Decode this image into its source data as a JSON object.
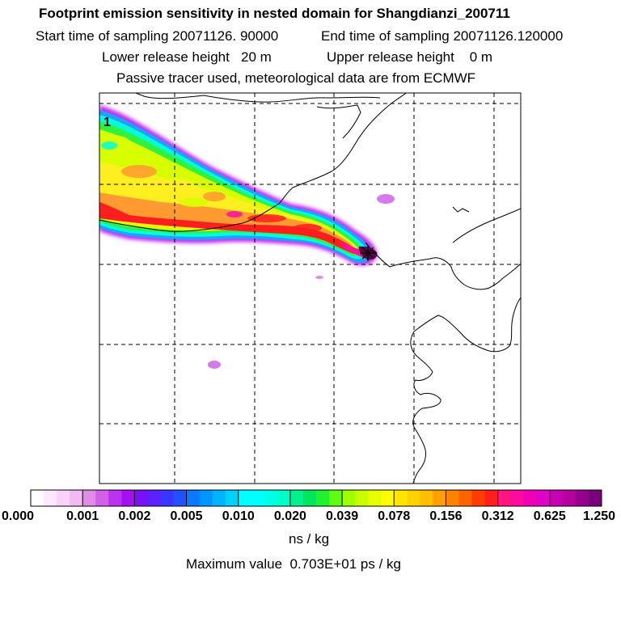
{
  "header": {
    "title": "Footprint emission sensitivity in nested domain for Shangdianzi_200711",
    "start_label": "Start time of sampling 20071126. 90000",
    "end_label": "End time of sampling 20071126.120000",
    "lower_label": "Lower release height   20 m",
    "upper_label": "Upper release height    0 m",
    "note": "Passive tracer used, meteorological data are from ECMWF"
  },
  "map": {
    "panel_number": "1",
    "max_value_note": "Maximum value  0.703E+01 ps / kg"
  },
  "colorbar": {
    "unit": "ns / kg",
    "labels": [
      "0.000",
      "0.001",
      "0.002",
      "0.005",
      "0.010",
      "0.020",
      "0.039",
      "0.078",
      "0.156",
      "0.312",
      "0.625",
      "1.250"
    ],
    "segments": [
      [
        "#ffffff",
        "#fde8fd",
        "#f9d2f9",
        "#f2baf2"
      ],
      [
        "#e28ce8",
        "#d060e6",
        "#bb33ee",
        "#a510f0"
      ],
      [
        "#7a10f8",
        "#5a20ff",
        "#3a35ff",
        "#2050ff"
      ],
      [
        "#0a78ff",
        "#0096ff",
        "#00b4ff",
        "#00d2ff"
      ],
      [
        "#00ffff",
        "#00ffff",
        "#00ffe6",
        "#00ffc8"
      ],
      [
        "#00f08c",
        "#00e65a",
        "#20f030",
        "#60ff10"
      ],
      [
        "#a0ff00",
        "#c8ff00",
        "#e6ff00",
        "#ffff00"
      ],
      [
        "#ffe600",
        "#ffd200",
        "#ffbe00",
        "#ffa000"
      ],
      [
        "#ff8200",
        "#ff6400",
        "#ff3c00",
        "#ff1e1e"
      ],
      [
        "#ff1480",
        "#ff0aa0",
        "#f000b4",
        "#e000c8"
      ],
      [
        "#c800b4",
        "#b4009c",
        "#96008c",
        "#780078"
      ]
    ],
    "plume_colors": {
      "edge": "#c030f0",
      "outer": "#d878ee",
      "blue": "#20a0ff",
      "cyan": "#00ffd8",
      "green": "#30f040",
      "lime": "#d8ff00",
      "yellow": "#ffee20",
      "orange": "#ff9a30",
      "red": "#ff1e1e",
      "magenta": "#ff10a0",
      "dark": "#60004a"
    },
    "grid_color": "#000000",
    "coast_color": "#000000"
  }
}
